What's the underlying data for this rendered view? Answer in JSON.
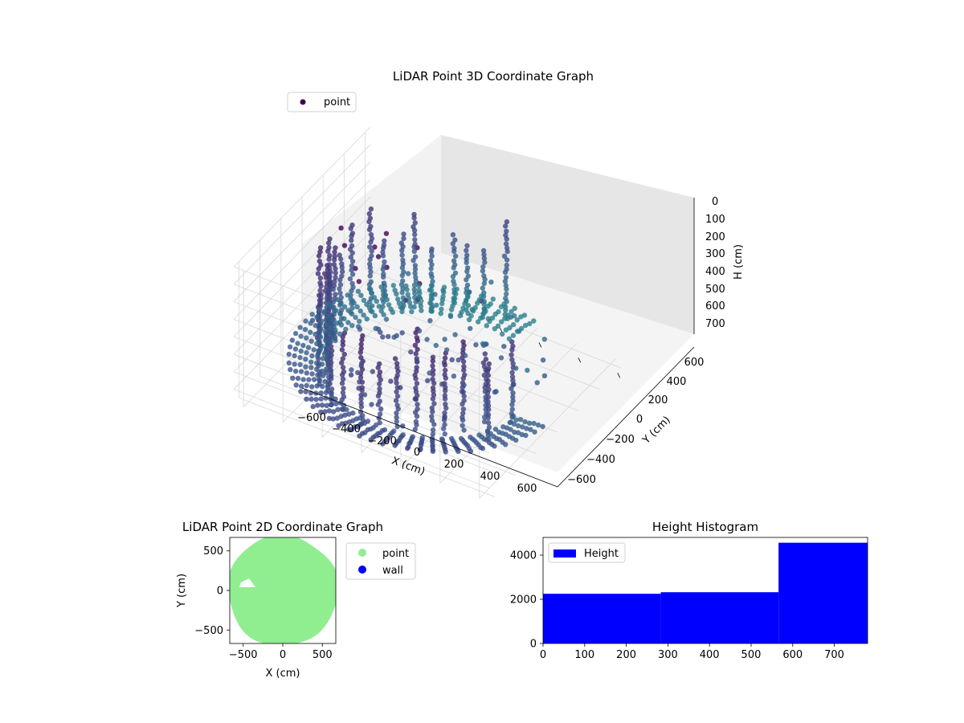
{
  "figure": {
    "background": "#ffffff"
  },
  "chart_data": [
    {
      "type": "scatter",
      "projection": "3d",
      "title": "LiDAR Point 3D Coordinate Graph",
      "xlabel": "X (cm)",
      "ylabel": "Y (cm)",
      "zlabel": "H (cm)",
      "xticks": [
        "−600",
        "−400",
        "−200",
        "0",
        "200",
        "400",
        "600"
      ],
      "yticks": [
        "−600",
        "−400",
        "−200",
        "0",
        "200",
        "400",
        "600"
      ],
      "zticks": [
        "0",
        "100",
        "200",
        "300",
        "400",
        "500",
        "600",
        "700"
      ],
      "xlim": [
        -650,
        650
      ],
      "ylim": [
        -650,
        650
      ],
      "zlim": [
        780,
        0
      ],
      "z_axis_inverted": true,
      "legend": {
        "position": "upper-left",
        "entries": [
          "point"
        ]
      },
      "series_name": "point",
      "colormap": "viridis",
      "colors": {
        "low": "#440154",
        "mid": "#3b528b",
        "high": "#21918c",
        "point_legend": "#440154"
      },
      "grid": true,
      "room_radius_cm": 620,
      "wall_segments": 30,
      "floor_height_cm": 760
    },
    {
      "type": "scatter",
      "title": "LiDAR Point 2D Coordinate Graph",
      "xlabel": "X (cm)",
      "ylabel": "Y (cm)",
      "xticks": [
        "−500",
        "0",
        "500"
      ],
      "yticks": [
        "500",
        "0",
        "−500"
      ],
      "xlim": [
        -670,
        670
      ],
      "ylim": [
        -670,
        670
      ],
      "series": [
        {
          "name": "point",
          "color": "#90ee90"
        },
        {
          "name": "wall",
          "color": "#0000ff"
        }
      ],
      "legend": {
        "position": "outside-right",
        "entries": [
          "point",
          "wall"
        ]
      },
      "grid": false
    },
    {
      "type": "bar",
      "title": "Height Histogram",
      "xticks": [
        "0",
        "100",
        "200",
        "300",
        "400",
        "500",
        "600",
        "700"
      ],
      "yticks": [
        "0",
        "2000",
        "4000"
      ],
      "xlim": [
        0,
        780
      ],
      "ylim": [
        0,
        4800
      ],
      "bins": [
        {
          "start": 0,
          "end": 283,
          "count": 2250
        },
        {
          "start": 283,
          "end": 566,
          "count": 2320
        },
        {
          "start": 566,
          "end": 780,
          "count": 4560
        }
      ],
      "series": [
        {
          "name": "Height",
          "color": "#0000ff"
        }
      ],
      "legend": {
        "position": "upper-left",
        "entries": [
          "Height"
        ]
      },
      "grid": false
    }
  ]
}
